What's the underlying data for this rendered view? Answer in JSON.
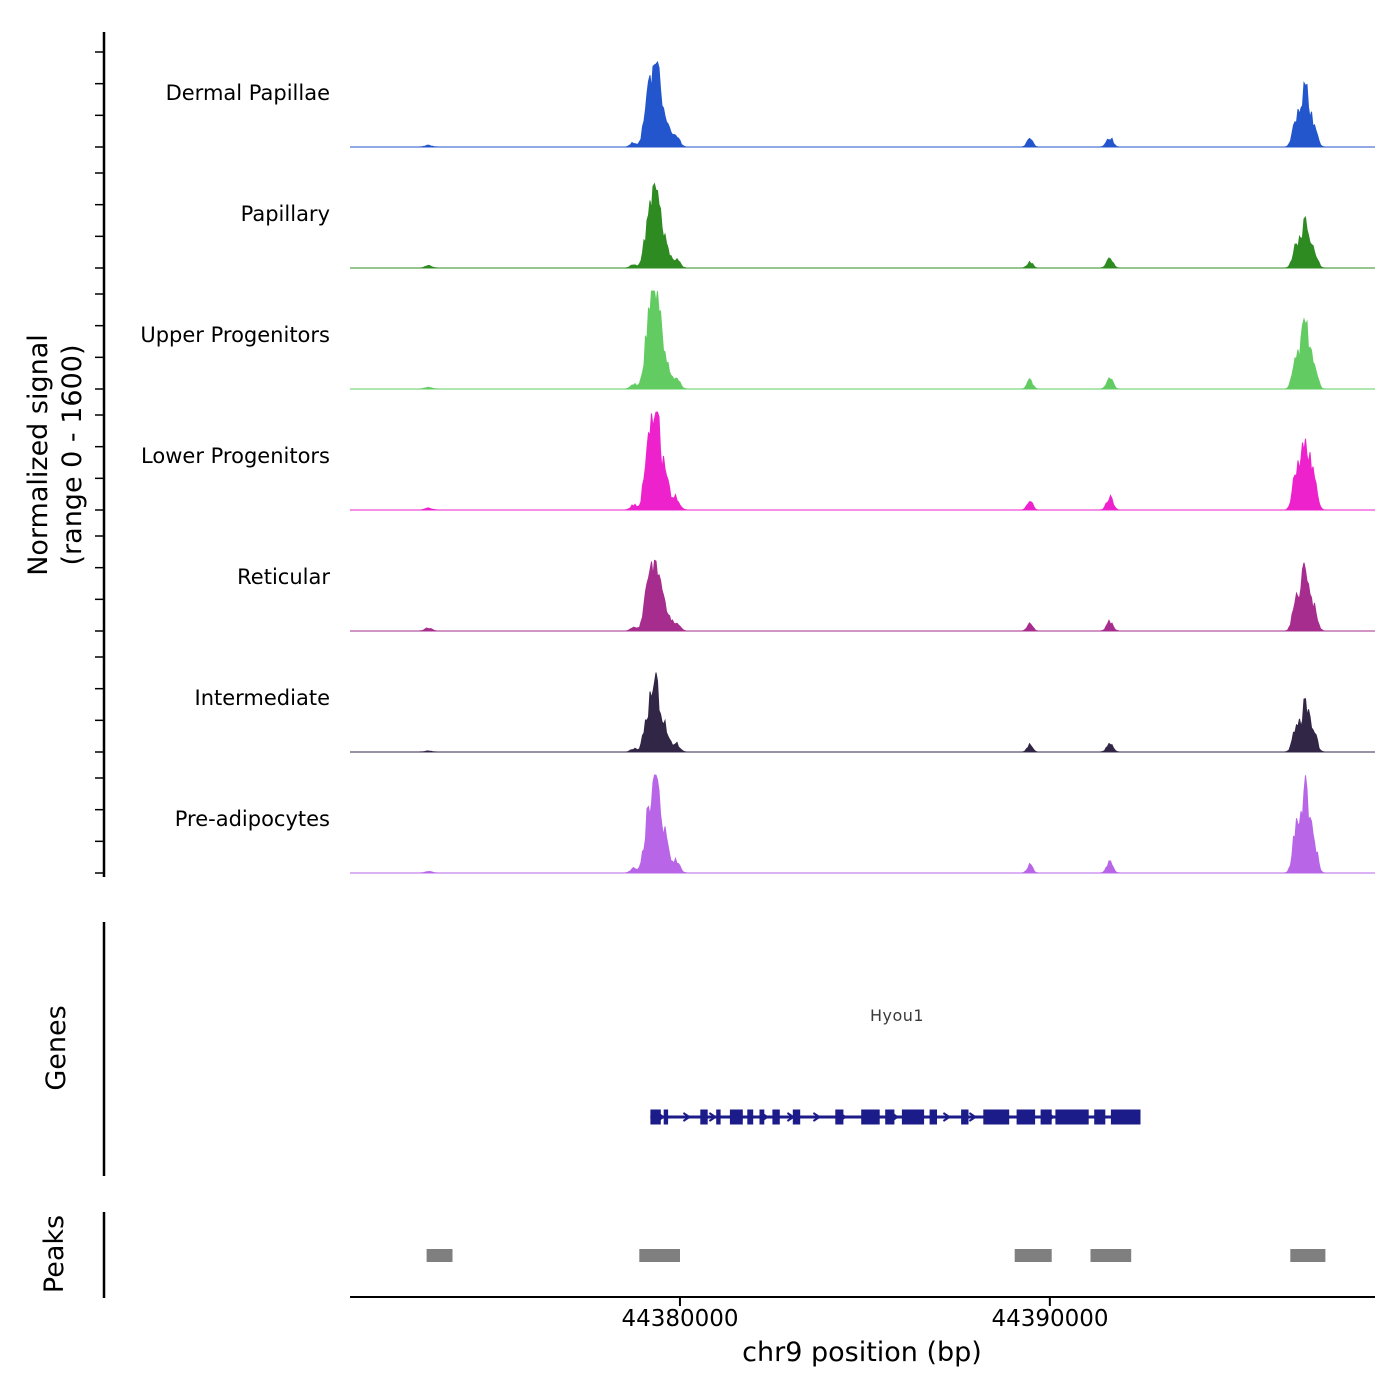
{
  "figure": {
    "y_axis_title_line1": "Normalized signal",
    "y_axis_title_line2": "(range 0 - 1600)",
    "x_axis_title": "chr9 position (bp)",
    "genes_section_label": "Genes",
    "peaks_section_label": "Peaks"
  },
  "chart_data": {
    "type": "area",
    "title": "",
    "xlabel": "chr9 position (bp)",
    "ylabel": "Normalized signal (range 0 - 1600)",
    "x_axis": {
      "domain_bp": [
        44371080,
        44398790
      ],
      "ticks": [
        {
          "pos": 44380000,
          "label": "44380000"
        },
        {
          "pos": 44390000,
          "label": "44390000"
        }
      ]
    },
    "y_axis": {
      "min": 0,
      "max": 1600
    },
    "tracks": [
      {
        "name": "Dermal Papillae",
        "color": "#2356cd",
        "peak_values": {
          "main_cluster": 1380,
          "right_cluster": 930,
          "minor_a": 150,
          "minor_b": 150,
          "left_blip": 25
        }
      },
      {
        "name": "Papillary",
        "color": "#2e8b22",
        "peak_values": {
          "main_cluster": 1220,
          "right_cluster": 700,
          "minor_a": 100,
          "minor_b": 145,
          "left_blip": 35
        }
      },
      {
        "name": "Upper Progenitors",
        "color": "#62cc62",
        "peak_values": {
          "main_cluster": 1600,
          "right_cluster": 1000,
          "minor_a": 145,
          "minor_b": 175,
          "left_blip": 25
        }
      },
      {
        "name": "Lower Progenitors",
        "color": "#ee22cc",
        "peak_values": {
          "main_cluster": 1600,
          "right_cluster": 1270,
          "minor_a": 160,
          "minor_b": 210,
          "left_blip": 30
        }
      },
      {
        "name": "Reticular",
        "color": "#a62c8e",
        "peak_values": {
          "main_cluster": 1180,
          "right_cluster": 1040,
          "minor_a": 130,
          "minor_b": 145,
          "left_blip": 45
        }
      },
      {
        "name": "Intermediate",
        "color": "#322646",
        "peak_values": {
          "main_cluster": 1060,
          "right_cluster": 750,
          "minor_a": 110,
          "minor_b": 130,
          "left_blip": 15
        }
      },
      {
        "name": "Pre-adipocytes",
        "color": "#b865e8",
        "peak_values": {
          "main_cluster": 1560,
          "right_cluster": 1310,
          "minor_a": 130,
          "minor_b": 190,
          "left_blip": 25
        }
      }
    ],
    "signal_model": {
      "main_cluster": [
        {
          "bp": 44379320,
          "h": 1.0,
          "sd": 130
        },
        {
          "bp": 44379090,
          "h": 0.3,
          "sd": 95
        },
        {
          "bp": 44379600,
          "h": 0.3,
          "sd": 110
        },
        {
          "bp": 44379900,
          "h": 0.12,
          "sd": 90
        },
        {
          "bp": 44378750,
          "h": 0.05,
          "sd": 80
        }
      ],
      "right_cluster": [
        {
          "bp": 44396900,
          "h": 1.0,
          "sd": 120
        },
        {
          "bp": 44396640,
          "h": 0.42,
          "sd": 85
        },
        {
          "bp": 44397160,
          "h": 0.3,
          "sd": 80
        }
      ],
      "minor_a": [
        {
          "bp": 44389460,
          "h": 1.0,
          "sd": 70
        }
      ],
      "minor_b": [
        {
          "bp": 44391620,
          "h": 1.0,
          "sd": 80
        }
      ],
      "left_blip": [
        {
          "bp": 44373200,
          "h": 1.0,
          "sd": 90
        }
      ]
    },
    "genes": [
      {
        "name": "Hyou1",
        "color": "#1b1b8a",
        "strand": "+",
        "start": 44379200,
        "end": 44392450,
        "exons": [
          [
            44379200,
            44379480
          ],
          [
            44379560,
            44379680
          ],
          [
            44380550,
            44380750
          ],
          [
            44380980,
            44381100
          ],
          [
            44381350,
            44381700
          ],
          [
            44381820,
            44381980
          ],
          [
            44382150,
            44382280
          ],
          [
            44382500,
            44382700
          ],
          [
            44383050,
            44383250
          ],
          [
            44384200,
            44384420
          ],
          [
            44384900,
            44385400
          ],
          [
            44385550,
            44385800
          ],
          [
            44386000,
            44386600
          ],
          [
            44386750,
            44386950
          ],
          [
            44387600,
            44387800
          ],
          [
            44388200,
            44388900
          ],
          [
            44389100,
            44389600
          ],
          [
            44389750,
            44390050
          ],
          [
            44390150,
            44391050
          ],
          [
            44391200,
            44391500
          ],
          [
            44391650,
            44392450
          ]
        ]
      }
    ],
    "peaks_track": {
      "color": "#7f7f7f",
      "intervals_bp": [
        [
          44373150,
          44373850
        ],
        [
          44378900,
          44380000
        ],
        [
          44389050,
          44390050
        ],
        [
          44391100,
          44392200
        ],
        [
          44396500,
          44397450
        ]
      ]
    }
  }
}
